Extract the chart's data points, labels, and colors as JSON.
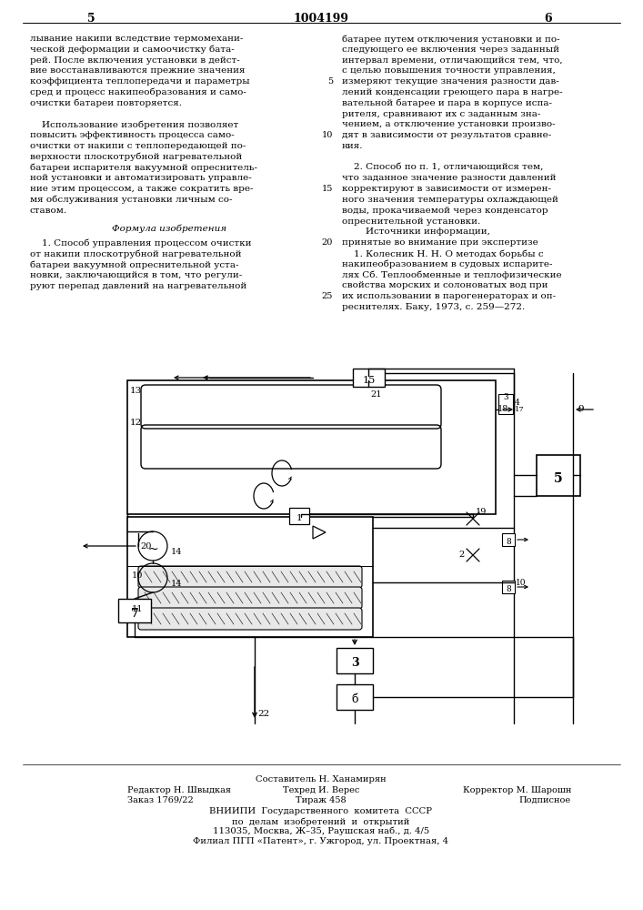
{
  "page_color": "#ffffff",
  "text_color": "#000000",
  "header_number_left": "5",
  "header_patent": "1004199",
  "header_number_right": "6",
  "left_col_text": [
    "лывание накипи вследствие термомехани-",
    "ческой деформации и самоочистку бата-",
    "рей. После включения установки в дейст-",
    "вие восстанавливаются прежние значения",
    "коэффициента теплопередачи и параметры",
    "сред и процесс накипеобразования и само-",
    "очистки батареи повторяется.",
    "",
    "    Использование изобретения позволяет",
    "повысить эффективность процесса само-",
    "очистки от накипи с теплопередающей по-",
    "верхности плоскотрубной нагревательной",
    "батареи испарителя вакуумной опреснитель-",
    "ной установки и автоматизировать управле-",
    "ние этим процессом, а также сократить вре-",
    "мя обслуживания установки личным со-",
    "ставом."
  ],
  "formula_header": "Формула изобретения",
  "left_col_formula": [
    "    1. Способ управления процессом очистки",
    "от накипи плоскотрубной нагревательной",
    "батареи вакуумной опреснительной уста-",
    "новки, заключающийся в том, что регули-",
    "руют перепад давлений на нагревательной"
  ],
  "right_col_text_top": [
    "батарее путем отключения установки и по-",
    "следующего ее включения через заданный",
    "интервал времени, отличающийся тем, что,",
    "с целью повышения точности управления,",
    "измеряют текущие значения разности дав-",
    "лений конденсации греющего пара в нагре-",
    "вательной батарее и пара в корпусе испа-",
    "рителя, сравнивают их с заданным зна-",
    "чением, а отключение установки произво-",
    "дят в зависимости от результатов сравне-",
    "ния.",
    "",
    "    2. Способ по п. 1, отличающийся тем,",
    "что заданное значение разности давлений",
    "корректируют в зависимости от измерен-",
    "ного значения температуры охлаждающей",
    "воды, прокачиваемой через конденсатор",
    "опреснительной установки.",
    "        Источники информации,",
    "принятые во внимание при экспертизе",
    "    1. Колесник Н. Н. О методах борьбы с",
    "накипеобразованием в судовых испарите-",
    "лях Сб. Теплообменные и теплофизические",
    "свойства морских и солоноватых вод при",
    "их использовании в парогенераторах и оп-",
    "реснителях. Баку, 1973, с. 259—272."
  ],
  "right_lineno": {
    "4": "5",
    "9": "10",
    "14": "15",
    "19": "20",
    "24": "25"
  },
  "footer_composer": "Составитель Н. Ханамирян",
  "footer_line1_left": "Редактор Н. Швыдкая",
  "footer_line1_mid": "Техред И. Верес",
  "footer_line1_right": "Корректор М. Шарошн",
  "footer_line2_left": "Заказ 1769/22",
  "footer_line2_mid": "Тираж 458",
  "footer_line2_right": "Подписное",
  "footer_org1": "ВНИИПИ  Государственного  комитета  СССР",
  "footer_org2": "по  делам  изобретений  и  открытий",
  "footer_org3": "113035, Москва, Ж–35, Раушская наб., д. 4/5",
  "footer_org4": "Филиал ПГП «Патент», г. Ужгород, ул. Проектная, 4"
}
